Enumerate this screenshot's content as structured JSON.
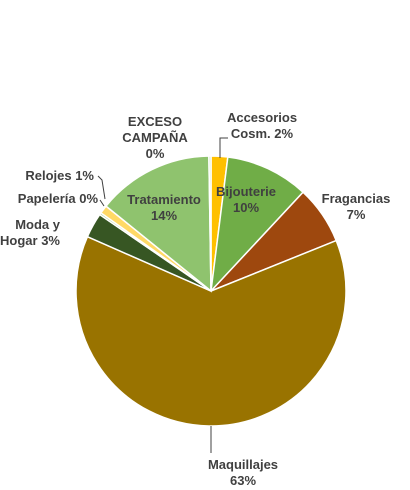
{
  "chart_data": {
    "type": "pie",
    "title": "",
    "slices": [
      {
        "name": "Accesorios Cosm.",
        "value": 2,
        "color": "#ffc000",
        "label": [
          "Accesorios",
          "Cosm. 2%"
        ]
      },
      {
        "name": "Bijouterie",
        "value": 10,
        "color": "#70ad47",
        "label": [
          "Bijouterie",
          "10%"
        ]
      },
      {
        "name": "Fragancias",
        "value": 7,
        "color": "#9e480e",
        "label": [
          "Fragancias",
          "7%"
        ]
      },
      {
        "name": "Maquillajes",
        "value": 63,
        "color": "#997300",
        "label": [
          "Maquillajes",
          "63%"
        ]
      },
      {
        "name": "Moda y Hogar",
        "value": 3,
        "color": "#375623",
        "label": [
          "Moda y",
          "Hogar 3%"
        ]
      },
      {
        "name": "Papelería",
        "value": 0,
        "color": "#a9d18e",
        "label": [
          "Papelería 0%"
        ]
      },
      {
        "name": "Relojes",
        "value": 1,
        "color": "#ffd966",
        "label": [
          "Relojes 1%"
        ]
      },
      {
        "name": "Tratamiento",
        "value": 14,
        "color": "#8fc36e",
        "label": [
          "Tratamiento",
          "14%"
        ]
      },
      {
        "name": "EXCESO CAMPAÑA",
        "value": 0,
        "color": "#c5e0b4",
        "label": [
          "EXCESO",
          "CAMPAÑA",
          "0%"
        ]
      }
    ]
  }
}
